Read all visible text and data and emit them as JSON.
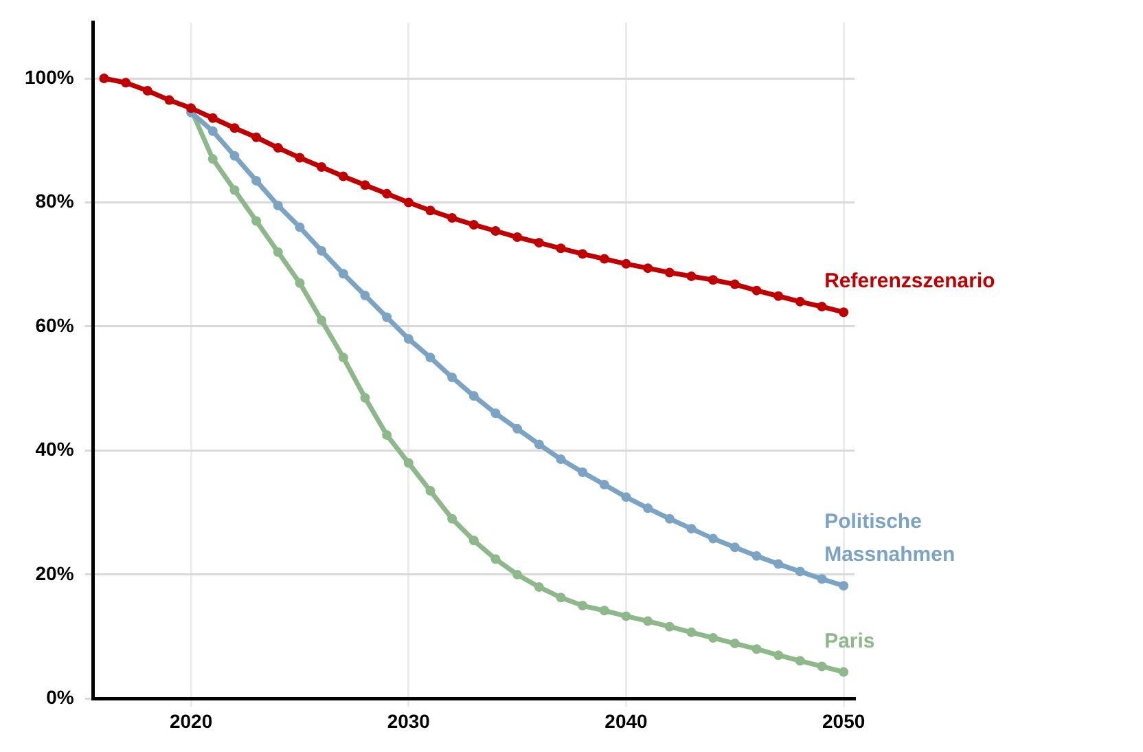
{
  "chart_data": {
    "type": "line",
    "x": [
      2016,
      2017,
      2018,
      2019,
      2020,
      2021,
      2022,
      2023,
      2024,
      2025,
      2026,
      2027,
      2028,
      2029,
      2030,
      2031,
      2032,
      2033,
      2034,
      2035,
      2036,
      2037,
      2038,
      2039,
      2040,
      2041,
      2042,
      2043,
      2044,
      2045,
      2046,
      2047,
      2048,
      2049,
      2050
    ],
    "series": [
      {
        "name": "Referenzszenario",
        "color": "#c00000",
        "values": [
          100,
          99.3,
          98,
          96.5,
          95.2,
          93.6,
          92,
          90.5,
          88.8,
          87.2,
          85.7,
          84.2,
          82.8,
          81.4,
          80,
          78.7,
          77.5,
          76.4,
          75.4,
          74.4,
          73.5,
          72.6,
          71.7,
          70.9,
          70.1,
          69.4,
          68.7,
          68.1,
          67.5,
          66.8,
          65.8,
          64.9,
          64,
          63.2,
          62.3
        ]
      },
      {
        "name": "Politische Massnahmen",
        "color": "#7ba3c4",
        "values": [
          null,
          null,
          null,
          null,
          94.5,
          91.5,
          87.5,
          83.5,
          79.5,
          76,
          72.2,
          68.5,
          65,
          61.5,
          58,
          55,
          51.8,
          48.8,
          46,
          43.5,
          41,
          38.6,
          36.5,
          34.5,
          32.5,
          30.7,
          29,
          27.4,
          25.8,
          24.4,
          23,
          21.7,
          20.5,
          19.3,
          18.2
        ]
      },
      {
        "name": "Paris",
        "color": "#8db88a",
        "values": [
          null,
          null,
          null,
          null,
          95,
          87,
          82,
          77,
          72,
          67,
          61,
          55,
          48.5,
          42.5,
          38,
          33.5,
          29,
          25.5,
          22.5,
          20,
          18,
          16.3,
          15,
          14.2,
          13.3,
          12.5,
          11.6,
          10.7,
          9.8,
          8.9,
          8,
          7,
          6.1,
          5.2,
          4.3
        ]
      }
    ],
    "xlim": [
      2015.5,
      2050.5
    ],
    "xticks": [
      2020,
      2030,
      2040,
      2050
    ],
    "ylim": [
      0,
      109
    ],
    "yticks": [
      {
        "value": 0,
        "label": "0%"
      },
      {
        "value": 20,
        "label": "20%"
      },
      {
        "value": 40,
        "label": "40%"
      },
      {
        "value": 60,
        "label": "60%"
      },
      {
        "value": 80,
        "label": "80%"
      },
      {
        "value": 100,
        "label": "100%"
      }
    ],
    "grid": true,
    "legend": false,
    "marker": "circle",
    "line_style": "solid"
  }
}
